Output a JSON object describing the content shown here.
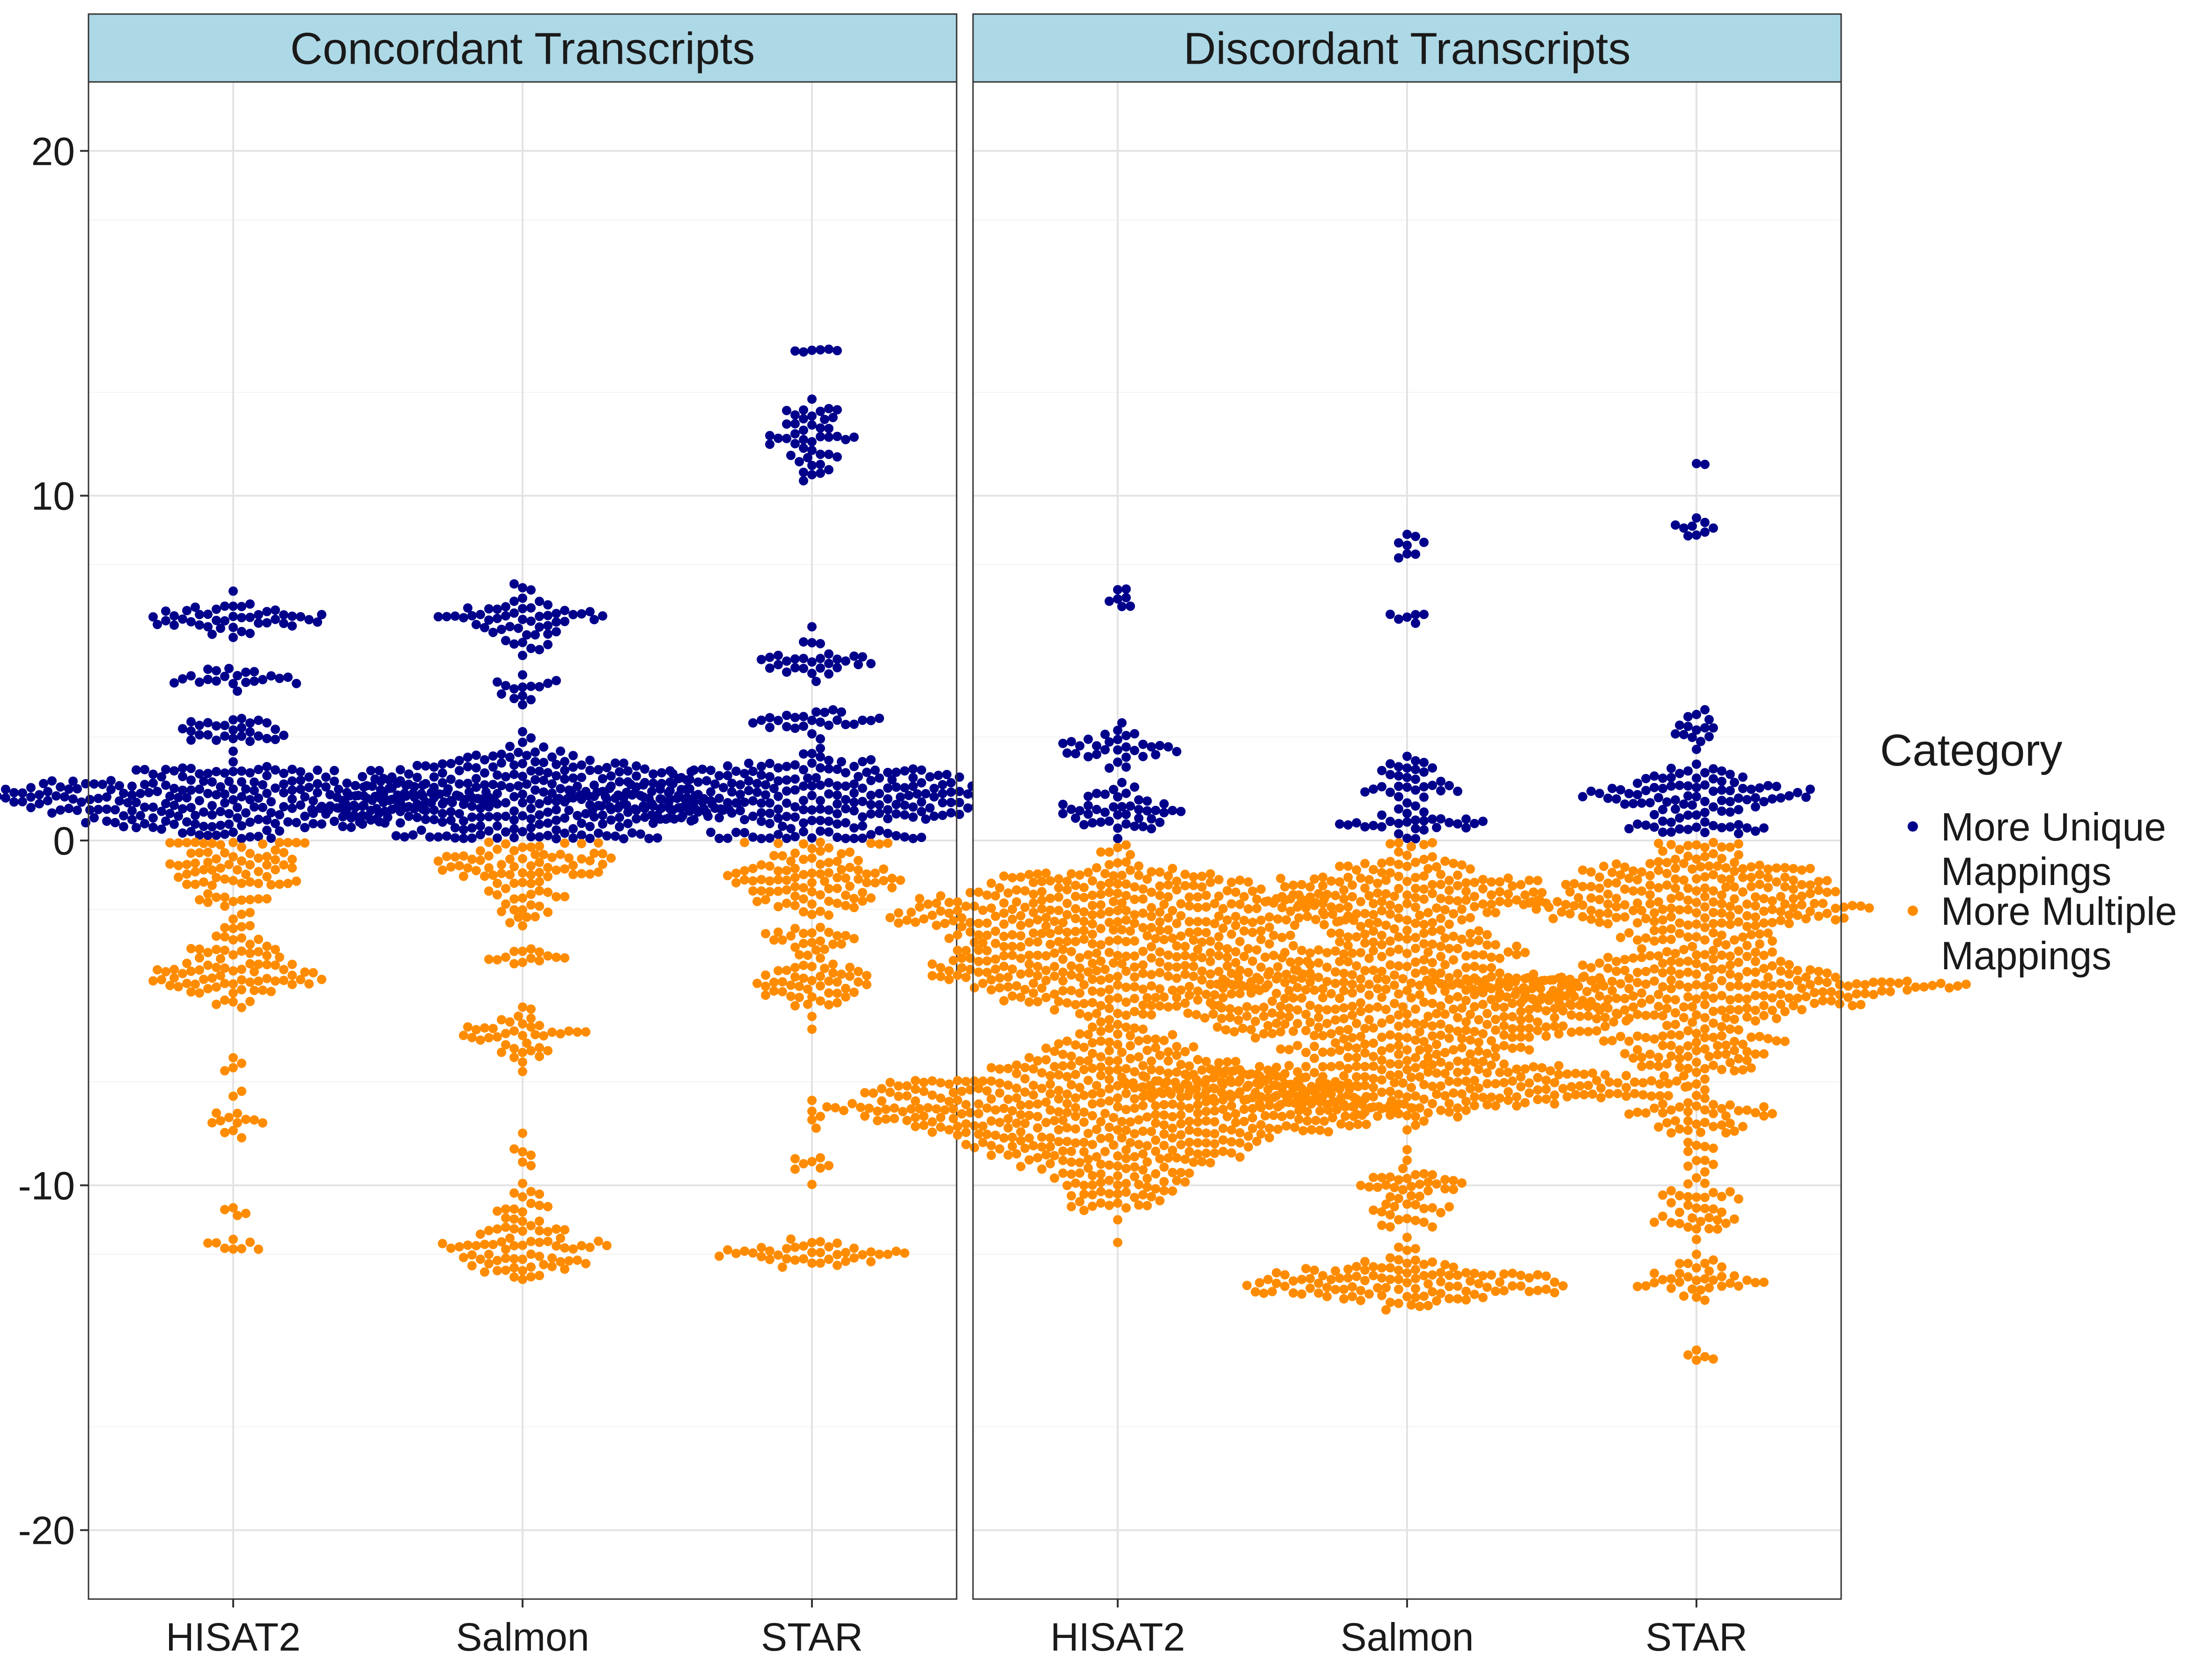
{
  "chart_data": {
    "type": "scatter",
    "subtype": "beeswarm",
    "ylim": [
      -22,
      22
    ],
    "y_ticks": [
      "20",
      "10",
      "0",
      "-10",
      "-20"
    ],
    "y_tick_values": [
      20,
      10,
      0,
      -10,
      -20
    ],
    "categories": [
      "HISAT2",
      "Salmon",
      "STAR"
    ],
    "grid": true,
    "legend_placement": "right",
    "legend": {
      "title": "Category",
      "entries": [
        {
          "key": "unique",
          "label_lines": [
            "More Unique",
            "Mappings"
          ],
          "color": "#00008B"
        },
        {
          "key": "multiple",
          "label_lines": [
            "More Multiple",
            "Mappings"
          ],
          "color": "#FF8C00"
        }
      ]
    },
    "panels": [
      {
        "title": "Concordant Transcripts",
        "groups": [
          {
            "category": "HISAT2",
            "clusters": [
              {
                "series": "unique",
                "y": 6.4,
                "sd": 0.3,
                "n": 45
              },
              {
                "series": "unique",
                "y": 4.7,
                "sd": 0.2,
                "n": 22
              },
              {
                "series": "unique",
                "y": 3.2,
                "sd": 0.2,
                "n": 28
              },
              {
                "series": "unique",
                "y": 1.2,
                "sd": 0.6,
                "n": 260
              },
              {
                "series": "multiple",
                "y": -0.8,
                "sd": 0.6,
                "n": 75
              },
              {
                "series": "multiple",
                "y": -3.0,
                "sd": 0.5,
                "n": 30
              },
              {
                "series": "multiple",
                "y": -4.1,
                "sd": 0.3,
                "n": 55
              },
              {
                "series": "multiple",
                "y": -7.0,
                "sd": 0.3,
                "n": 6
              },
              {
                "series": "multiple",
                "y": -8.1,
                "sd": 0.3,
                "n": 12
              },
              {
                "series": "multiple",
                "y": -10.8,
                "sd": 0.3,
                "n": 4
              },
              {
                "series": "multiple",
                "y": -11.8,
                "sd": 0.15,
                "n": 8
              }
            ]
          },
          {
            "category": "Salmon",
            "clusters": [
              {
                "series": "unique",
                "y": 6.5,
                "sd": 0.45,
                "n": 55
              },
              {
                "series": "unique",
                "y": 4.4,
                "sd": 0.2,
                "n": 14
              },
              {
                "series": "unique",
                "y": 1.2,
                "sd": 0.7,
                "n": 300
              },
              {
                "series": "multiple",
                "y": -0.6,
                "sd": 0.4,
                "n": 60
              },
              {
                "series": "multiple",
                "y": -1.8,
                "sd": 0.4,
                "n": 25
              },
              {
                "series": "multiple",
                "y": -3.4,
                "sd": 0.2,
                "n": 14
              },
              {
                "series": "multiple",
                "y": -5.6,
                "sd": 0.4,
                "n": 40
              },
              {
                "series": "multiple",
                "y": -9.0,
                "sd": 0.3,
                "n": 6
              },
              {
                "series": "multiple",
                "y": -10.6,
                "sd": 0.4,
                "n": 20
              },
              {
                "series": "multiple",
                "y": -12.0,
                "sd": 0.35,
                "n": 60
              }
            ]
          },
          {
            "category": "STAR",
            "clusters": [
              {
                "series": "unique",
                "y": 14.2,
                "sd": 0.05,
                "n": 6
              },
              {
                "series": "unique",
                "y": 11.6,
                "sd": 0.6,
                "n": 45
              },
              {
                "series": "unique",
                "y": 5.3,
                "sd": 0.3,
                "n": 30
              },
              {
                "series": "unique",
                "y": 3.5,
                "sd": 0.2,
                "n": 25
              },
              {
                "series": "unique",
                "y": 1.2,
                "sd": 0.6,
                "n": 280
              },
              {
                "series": "multiple",
                "y": -1.2,
                "sd": 0.6,
                "n": 95
              },
              {
                "series": "multiple",
                "y": -2.9,
                "sd": 0.2,
                "n": 20
              },
              {
                "series": "multiple",
                "y": -4.2,
                "sd": 0.5,
                "n": 50
              },
              {
                "series": "multiple",
                "y": -8.0,
                "sd": 0.5,
                "n": 6
              },
              {
                "series": "multiple",
                "y": -9.5,
                "sd": 0.3,
                "n": 7
              },
              {
                "series": "multiple",
                "y": -12.0,
                "sd": 0.2,
                "n": 40
              }
            ]
          }
        ]
      },
      {
        "title": "Discordant Transcripts",
        "groups": [
          {
            "category": "HISAT2",
            "clusters": [
              {
                "series": "unique",
                "y": 7.1,
                "sd": 0.15,
                "n": 7
              },
              {
                "series": "unique",
                "y": 2.8,
                "sd": 0.35,
                "n": 30
              },
              {
                "series": "unique",
                "y": 0.9,
                "sd": 0.35,
                "n": 45
              },
              {
                "series": "multiple",
                "y": -2.2,
                "sd": 0.9,
                "n": 350
              },
              {
                "series": "multiple",
                "y": -4.0,
                "sd": 0.5,
                "n": 150
              },
              {
                "series": "multiple",
                "y": -7.8,
                "sd": 1.2,
                "n": 560
              }
            ]
          },
          {
            "category": "Salmon",
            "clusters": [
              {
                "series": "unique",
                "y": 8.6,
                "sd": 0.2,
                "n": 8
              },
              {
                "series": "unique",
                "y": 6.5,
                "sd": 0.15,
                "n": 6
              },
              {
                "series": "unique",
                "y": 1.8,
                "sd": 0.4,
                "n": 30
              },
              {
                "series": "unique",
                "y": 0.5,
                "sd": 0.2,
                "n": 30
              },
              {
                "series": "multiple",
                "y": -1.5,
                "sd": 0.6,
                "n": 150
              },
              {
                "series": "multiple",
                "y": -4.8,
                "sd": 1.2,
                "n": 450
              },
              {
                "series": "multiple",
                "y": -7.2,
                "sd": 0.4,
                "n": 200
              },
              {
                "series": "multiple",
                "y": -10.2,
                "sd": 0.5,
                "n": 50
              },
              {
                "series": "multiple",
                "y": -12.8,
                "sd": 0.35,
                "n": 120
              }
            ]
          },
          {
            "category": "STAR",
            "clusters": [
              {
                "series": "unique",
                "y": 10.9,
                "sd": 0.05,
                "n": 2
              },
              {
                "series": "unique",
                "y": 9.2,
                "sd": 0.3,
                "n": 9
              },
              {
                "series": "unique",
                "y": 3.2,
                "sd": 0.35,
                "n": 15
              },
              {
                "series": "unique",
                "y": 1.4,
                "sd": 0.35,
                "n": 80
              },
              {
                "series": "unique",
                "y": 0.4,
                "sd": 0.15,
                "n": 20
              },
              {
                "series": "multiple",
                "y": -1.8,
                "sd": 0.9,
                "n": 260
              },
              {
                "series": "multiple",
                "y": -4.3,
                "sd": 0.5,
                "n": 220
              },
              {
                "series": "multiple",
                "y": -6.0,
                "sd": 0.4,
                "n": 70
              },
              {
                "series": "multiple",
                "y": -8.0,
                "sd": 0.4,
                "n": 50
              },
              {
                "series": "multiple",
                "y": -10.6,
                "sd": 0.6,
                "n": 40
              },
              {
                "series": "multiple",
                "y": -12.8,
                "sd": 0.35,
                "n": 35
              },
              {
                "series": "multiple",
                "y": -15.2,
                "sd": 0.25,
                "n": 5
              }
            ]
          }
        ]
      }
    ]
  }
}
